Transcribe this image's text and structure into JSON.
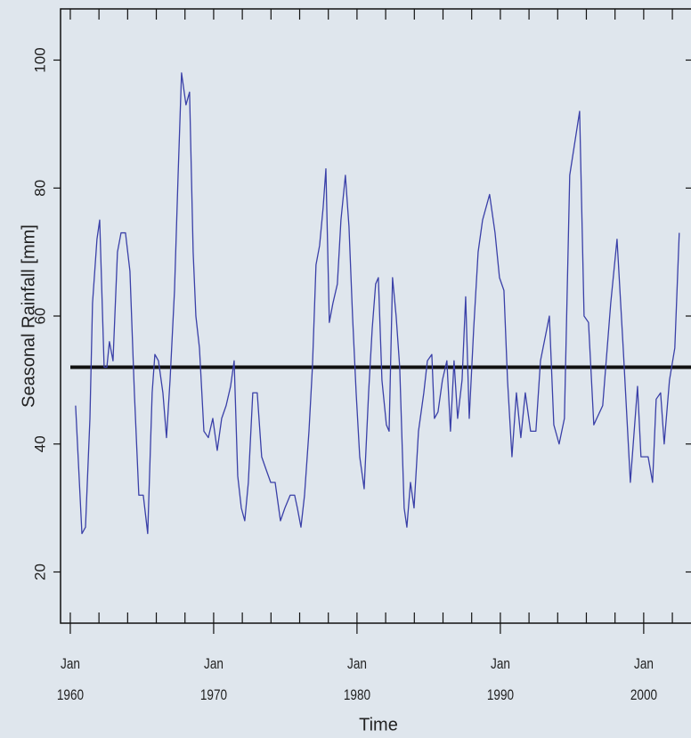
{
  "chart_data": {
    "type": "line",
    "y_label": "Seasonal Rainfall [mm]",
    "x_label": "Time",
    "color": "#3a40a8",
    "reference_line": 52,
    "reference_color": "#111111",
    "xlim": [
      1959.32,
      2003.3
    ],
    "ylim": [
      12,
      108
    ],
    "xticks": [
      {
        "value": 1960,
        "label": "Jan 1960"
      },
      {
        "value": 1970,
        "label": "Jan 1970"
      },
      {
        "value": 1980,
        "label": "Jan 1980"
      },
      {
        "value": 1990,
        "label": "Jan 1990"
      },
      {
        "value": 2000,
        "label": "Jan 2000"
      }
    ],
    "minor_xticks": [
      1960,
      1962,
      1964,
      1966,
      1968,
      1970,
      1972,
      1974,
      1976,
      1978,
      1980,
      1982,
      1984,
      1986,
      1988,
      1990,
      1992,
      1994,
      1996,
      1998,
      2000,
      2002
    ],
    "yticks": [
      20,
      40,
      60,
      80,
      100
    ],
    "x": [
      1960.37,
      1960.81,
      1961.06,
      1961.37,
      1961.55,
      1961.86,
      1962.05,
      1962.36,
      1962.55,
      1962.73,
      1962.98,
      1963.29,
      1963.54,
      1963.85,
      1964.16,
      1964.47,
      1964.78,
      1965.09,
      1965.4,
      1965.71,
      1965.9,
      1966.15,
      1966.46,
      1966.71,
      1966.96,
      1967.27,
      1967.52,
      1967.76,
      1968.07,
      1968.32,
      1968.57,
      1968.76,
      1969.01,
      1969.32,
      1969.63,
      1969.94,
      1970.25,
      1970.56,
      1970.87,
      1971.18,
      1971.43,
      1971.68,
      1971.93,
      1972.17,
      1972.42,
      1972.73,
      1973.04,
      1973.35,
      1973.66,
      1973.98,
      1974.29,
      1974.66,
      1974.97,
      1975.34,
      1975.65,
      1975.84,
      1976.09,
      1976.34,
      1976.65,
      1976.89,
      1977.14,
      1977.39,
      1977.64,
      1977.83,
      1978.07,
      1978.32,
      1978.63,
      1978.88,
      1979.19,
      1979.44,
      1979.69,
      1979.94,
      1980.19,
      1980.5,
      1980.81,
      1981.06,
      1981.3,
      1981.49,
      1981.74,
      1982.05,
      1982.24,
      1982.48,
      1982.73,
      1982.98,
      1983.29,
      1983.48,
      1983.73,
      1983.98,
      1984.29,
      1984.66,
      1984.91,
      1985.22,
      1985.4,
      1985.65,
      1985.96,
      1986.27,
      1986.52,
      1986.77,
      1987.02,
      1987.33,
      1987.58,
      1987.83,
      1988.14,
      1988.45,
      1988.76,
      1989.25,
      1989.63,
      1989.94,
      1990.25,
      1990.5,
      1990.81,
      1991.12,
      1991.43,
      1991.74,
      1992.11,
      1992.48,
      1992.8,
      1993.42,
      1993.73,
      1994.1,
      1994.47,
      1994.84,
      1995.53,
      1995.84,
      1996.15,
      1996.52,
      1997.14,
      1997.7,
      1998.14,
      1998.57,
      1999.07,
      1999.57,
      1999.81,
      2000.31,
      2000.62,
      2000.87,
      2001.18,
      2001.43,
      2001.8,
      2002.17,
      2002.48
    ],
    "values": [
      46,
      26,
      27,
      44,
      62,
      72,
      75,
      52,
      52,
      56,
      53,
      70,
      73,
      73,
      67,
      48,
      32,
      32,
      26,
      48,
      54,
      53,
      48,
      41,
      50,
      64,
      82,
      98,
      93,
      95,
      70,
      60,
      55,
      42,
      41,
      44,
      39,
      44,
      46,
      49,
      53,
      35,
      30,
      28,
      34,
      48,
      48,
      38,
      36,
      34,
      34,
      28,
      30,
      32,
      32,
      30,
      27,
      32,
      42,
      52,
      68,
      71,
      77,
      83,
      59,
      62,
      65,
      75,
      82,
      74,
      60,
      48,
      38,
      33,
      48,
      58,
      65,
      66,
      50,
      43,
      42,
      66,
      60,
      52,
      30,
      27,
      34,
      30,
      42,
      48,
      53,
      54,
      44,
      45,
      50,
      53,
      42,
      53,
      44,
      50,
      63,
      44,
      58,
      70,
      75,
      79,
      73,
      66,
      64,
      50,
      38,
      48,
      41,
      48,
      42,
      42,
      53,
      60,
      43,
      40,
      44,
      82,
      92,
      60,
      59,
      43,
      46,
      62,
      72,
      55,
      34,
      49,
      38,
      38,
      34,
      47,
      48,
      40,
      50,
      55,
      73
    ]
  }
}
